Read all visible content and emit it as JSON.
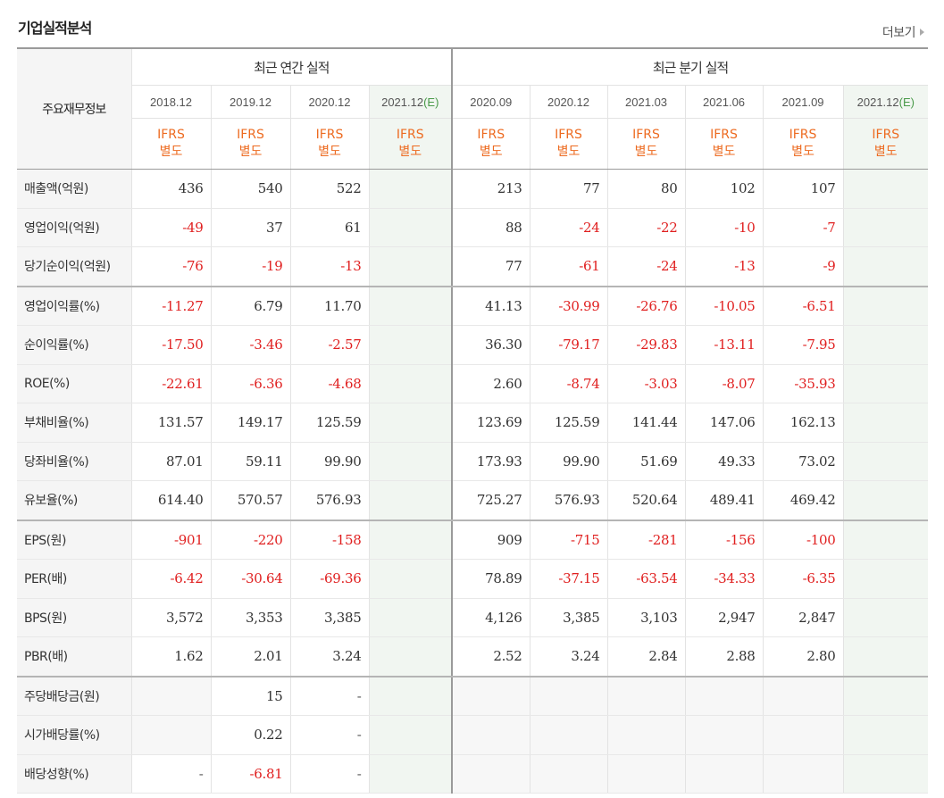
{
  "title": "기업실적분석",
  "more_label": "더보기",
  "header": {
    "row_label": "주요재무정보",
    "annual_group": "최근 연간 실적",
    "quarter_group": "최근 분기 실적",
    "ifrs_line1": "IFRS",
    "ifrs_line2": "별도"
  },
  "annual_periods": [
    {
      "label": "2018.12",
      "est": ""
    },
    {
      "label": "2019.12",
      "est": ""
    },
    {
      "label": "2020.12",
      "est": ""
    },
    {
      "label": "2021.12",
      "est": "(E)"
    }
  ],
  "quarter_periods": [
    {
      "label": "2020.09",
      "est": ""
    },
    {
      "label": "2020.12",
      "est": ""
    },
    {
      "label": "2021.03",
      "est": ""
    },
    {
      "label": "2021.06",
      "est": ""
    },
    {
      "label": "2021.09",
      "est": ""
    },
    {
      "label": "2021.12",
      "est": "(E)"
    }
  ],
  "rows": [
    {
      "label": "매출액(억원)",
      "annual": [
        "436",
        "540",
        "522",
        ""
      ],
      "quarter": [
        "213",
        "77",
        "80",
        "102",
        "107",
        ""
      ]
    },
    {
      "label": "영업이익(억원)",
      "annual": [
        "-49",
        "37",
        "61",
        ""
      ],
      "quarter": [
        "88",
        "-24",
        "-22",
        "-10",
        "-7",
        ""
      ]
    },
    {
      "label": "당기순이익(억원)",
      "annual": [
        "-76",
        "-19",
        "-13",
        ""
      ],
      "quarter": [
        "77",
        "-61",
        "-24",
        "-13",
        "-9",
        ""
      ]
    },
    {
      "label": "영업이익률(%)",
      "annual": [
        "-11.27",
        "6.79",
        "11.70",
        ""
      ],
      "quarter": [
        "41.13",
        "-30.99",
        "-26.76",
        "-10.05",
        "-6.51",
        ""
      ]
    },
    {
      "label": "순이익률(%)",
      "annual": [
        "-17.50",
        "-3.46",
        "-2.57",
        ""
      ],
      "quarter": [
        "36.30",
        "-79.17",
        "-29.83",
        "-13.11",
        "-7.95",
        ""
      ]
    },
    {
      "label": "ROE(%)",
      "annual": [
        "-22.61",
        "-6.36",
        "-4.68",
        ""
      ],
      "quarter": [
        "2.60",
        "-8.74",
        "-3.03",
        "-8.07",
        "-35.93",
        ""
      ]
    },
    {
      "label": "부채비율(%)",
      "annual": [
        "131.57",
        "149.17",
        "125.59",
        ""
      ],
      "quarter": [
        "123.69",
        "125.59",
        "141.44",
        "147.06",
        "162.13",
        ""
      ]
    },
    {
      "label": "당좌비율(%)",
      "annual": [
        "87.01",
        "59.11",
        "99.90",
        ""
      ],
      "quarter": [
        "173.93",
        "99.90",
        "51.69",
        "49.33",
        "73.02",
        ""
      ]
    },
    {
      "label": "유보율(%)",
      "annual": [
        "614.40",
        "570.57",
        "576.93",
        ""
      ],
      "quarter": [
        "725.27",
        "576.93",
        "520.64",
        "489.41",
        "469.42",
        ""
      ]
    },
    {
      "label": "EPS(원)",
      "annual": [
        "-901",
        "-220",
        "-158",
        ""
      ],
      "quarter": [
        "909",
        "-715",
        "-281",
        "-156",
        "-100",
        ""
      ]
    },
    {
      "label": "PER(배)",
      "annual": [
        "-6.42",
        "-30.64",
        "-69.36",
        ""
      ],
      "quarter": [
        "78.89",
        "-37.15",
        "-63.54",
        "-34.33",
        "-6.35",
        ""
      ]
    },
    {
      "label": "BPS(원)",
      "annual": [
        "3,572",
        "3,353",
        "3,385",
        ""
      ],
      "quarter": [
        "4,126",
        "3,385",
        "3,103",
        "2,947",
        "2,847",
        ""
      ]
    },
    {
      "label": "PBR(배)",
      "annual": [
        "1.62",
        "2.01",
        "3.24",
        ""
      ],
      "quarter": [
        "2.52",
        "3.24",
        "2.84",
        "2.88",
        "2.80",
        ""
      ]
    },
    {
      "label": "주당배당금(원)",
      "annual": [
        "",
        "15",
        "-",
        ""
      ],
      "quarter": [
        "",
        "",
        "",
        "",
        "",
        ""
      ]
    },
    {
      "label": "시가배당률(%)",
      "annual": [
        "",
        "0.22",
        "-",
        ""
      ],
      "quarter": [
        "",
        "",
        "",
        "",
        "",
        ""
      ]
    },
    {
      "label": "배당성향(%)",
      "annual": [
        "-",
        "-6.81",
        "-",
        ""
      ],
      "quarter": [
        "",
        "",
        "",
        "",
        "",
        ""
      ]
    }
  ],
  "colors": {
    "negative": "#e02020",
    "ifrs": "#ed6b21",
    "estimate_bg": "#f1f6f1",
    "estimate_mark": "#4a9a4a"
  }
}
